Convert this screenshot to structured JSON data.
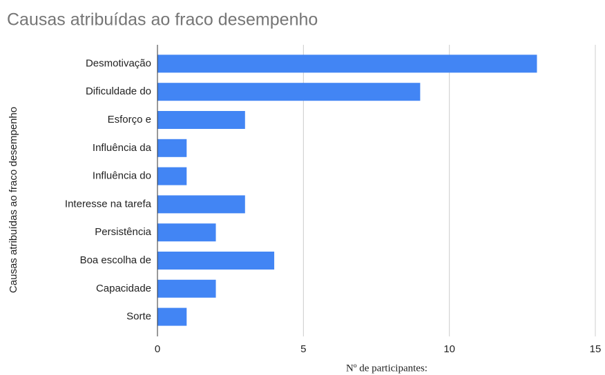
{
  "chart_data": {
    "type": "bar",
    "orientation": "horizontal",
    "title": "Causas atribuídas ao fraco desempenho",
    "x_label": "Nº de participantes:",
    "y_label": "Causas atribuídas ao fraco desempenho",
    "categories": [
      "Desmotivação",
      "Dificuldade do",
      "Esforço e",
      "Influência da",
      "Influência do",
      "Interesse na tarefa",
      "Persistência",
      "Boa escolha de",
      "Capacidade",
      "Sorte"
    ],
    "values": [
      13,
      9,
      3,
      1,
      1,
      3,
      2,
      4,
      2,
      1
    ],
    "color": "#4285f4",
    "xlim": [
      0,
      15
    ],
    "xticks": [
      0,
      5,
      10,
      15
    ],
    "grid": true
  }
}
